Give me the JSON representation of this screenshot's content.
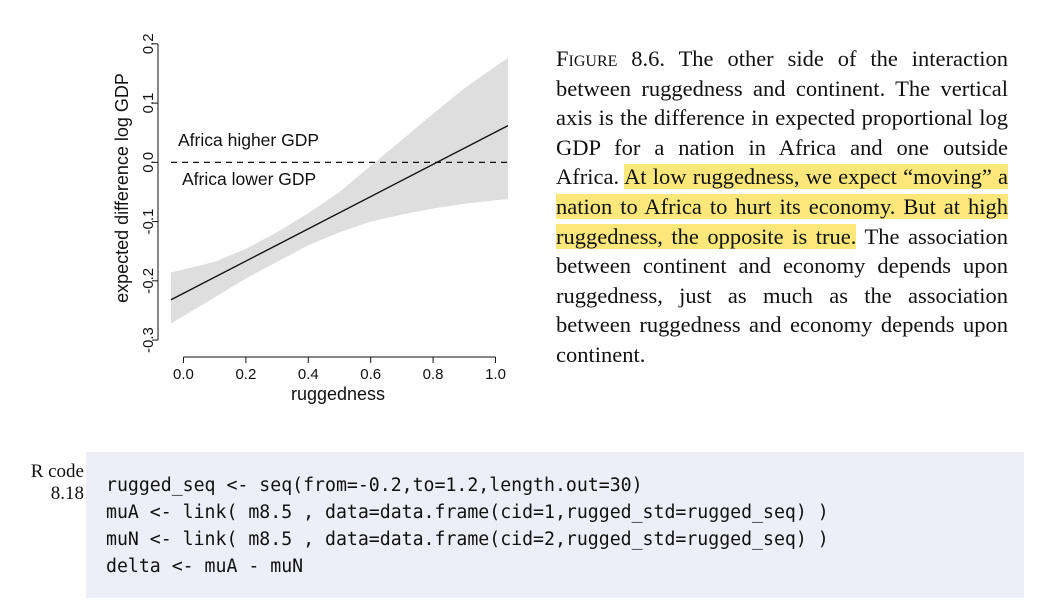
{
  "chart_data": {
    "type": "line",
    "xlabel": "ruggedness",
    "ylabel": "expected difference log GDP",
    "x_ticks": [
      "0.0",
      "0.2",
      "0.4",
      "0.6",
      "0.8",
      "1.0"
    ],
    "y_ticks": [
      "-0.3",
      "-0.2",
      "-0.1",
      "0.0",
      "0.1",
      "0.2"
    ],
    "xlim": [
      -0.04,
      1.04
    ],
    "ylim": [
      -0.31,
      0.22
    ],
    "reference_line": {
      "y": 0.0,
      "style": "dashed"
    },
    "annotations": [
      {
        "text": "Africa higher GDP",
        "x": 0.0,
        "y": 0.015
      },
      {
        "text": "Africa lower GDP",
        "x": 0.0,
        "y": -0.028
      }
    ],
    "series": [
      {
        "x": [
          -0.04,
          1.04
        ],
        "y": [
          -0.232,
          0.062
        ],
        "band_x": [
          -0.04,
          0.1,
          0.2,
          0.3,
          0.4,
          0.5,
          0.6,
          0.7,
          0.8,
          0.9,
          1.0,
          1.04
        ],
        "band_lower": [
          -0.272,
          -0.228,
          -0.196,
          -0.168,
          -0.14,
          -0.118,
          -0.1,
          -0.088,
          -0.078,
          -0.07,
          -0.064,
          -0.062
        ],
        "band_upper": [
          -0.186,
          -0.168,
          -0.146,
          -0.118,
          -0.086,
          -0.05,
          -0.006,
          0.038,
          0.082,
          0.125,
          0.162,
          0.176
        ],
        "line_color": "#111111",
        "band_color": "#dedede"
      }
    ]
  },
  "caption": {
    "label": "Figure 8.6.",
    "text1": "The other side of the interaction between ruggedness and continent. The ver­tical axis is the difference in expected propor­tional log GDP for a nation in Africa and one outside Africa.",
    "highlight": "At low ruggedness, we expect “moving” a nation to Africa to hurt its econ­omy. But at high ruggedness, the opposite is true.",
    "text2": "The association between continent and economy depends upon ruggedness, just as much as the association between ruggedness and economy depends upon continent."
  },
  "code": {
    "label_line1": "R code",
    "label_line2": "8.18",
    "lines": [
      "rugged_seq <- seq(from=-0.2,to=1.2,length.out=30)",
      "muA <- link( m8.5 , data=data.frame(cid=1,rugged_std=rugged_seq) )",
      "muN <- link( m8.5 , data=data.frame(cid=2,rugged_std=rugged_seq) )",
      "delta <- muA - muN"
    ]
  },
  "colors": {
    "highlight": "#fbe77a",
    "code_background": "#eeeef8",
    "band": "#dedede"
  }
}
